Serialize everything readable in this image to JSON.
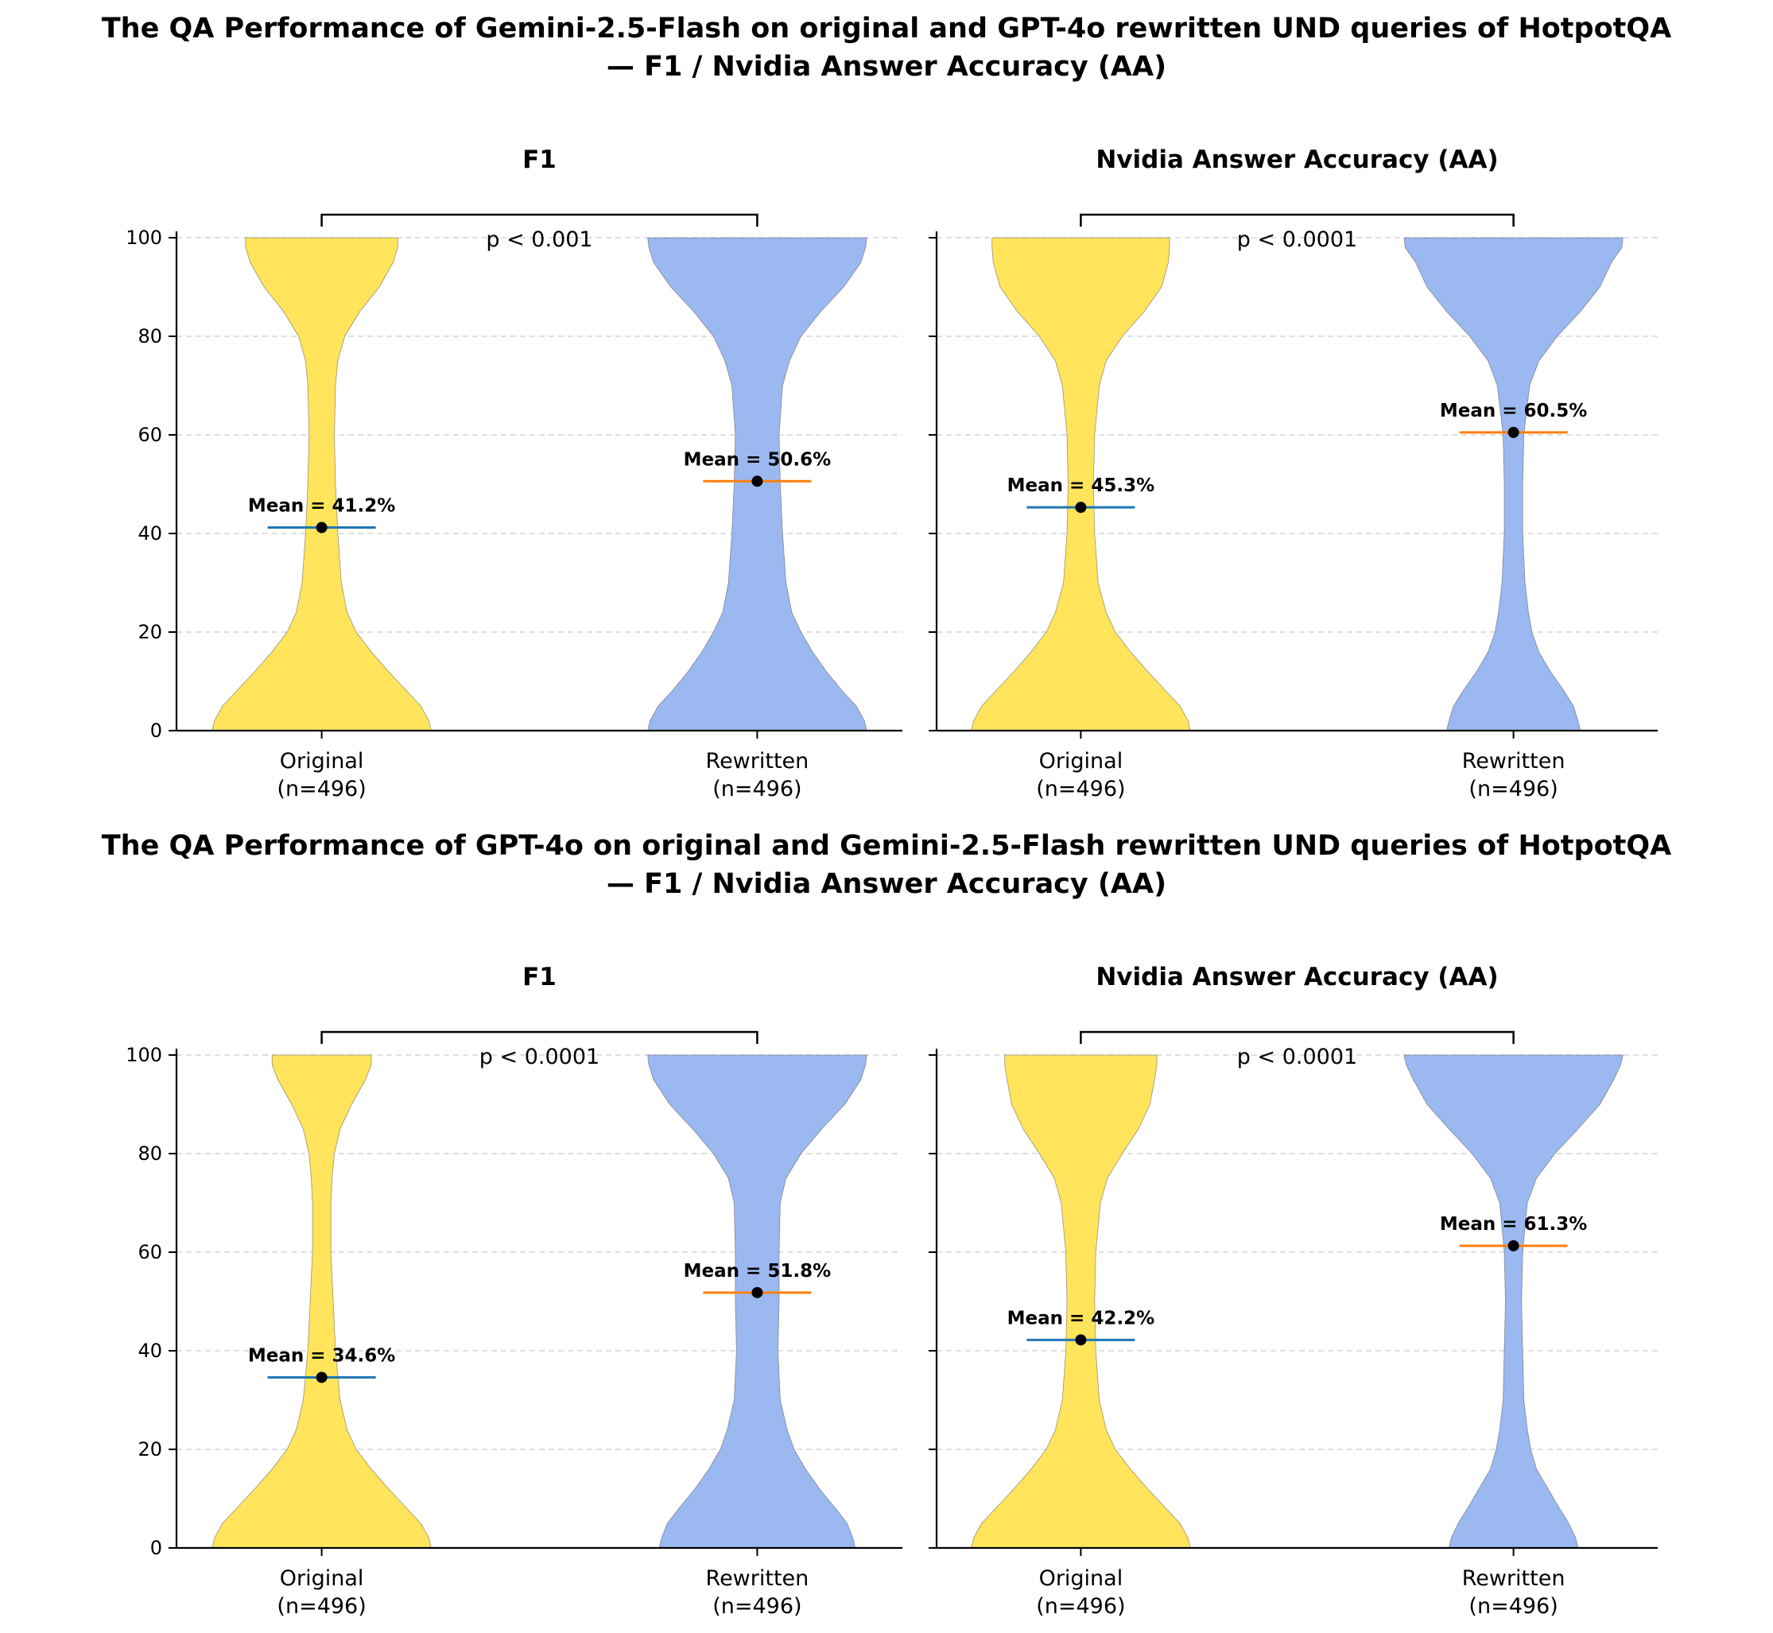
{
  "colors": {
    "original_fill": "#FFE45C",
    "rewritten_fill": "#9BB9F0",
    "original_mean_line": "#1F77B4",
    "rewritten_mean_line": "#FF7F0E",
    "grid": "#cccccc",
    "axis": "#000000"
  },
  "figures": [
    {
      "title_line1": "The QA Performance of Gemini-2.5-Flash on original and GPT-4o rewritten UND queries of HotpotQA",
      "title_line2": "— F1 / Nvidia Answer Accuracy (AA)"
    },
    {
      "title_line1": "The QA Performance of GPT-4o on original and Gemini-2.5-Flash rewritten UND queries of HotpotQA",
      "title_line2": "— F1 / Nvidia Answer Accuracy (AA)"
    }
  ],
  "chart_data": [
    {
      "type": "violin",
      "figure": 0,
      "title": "F1",
      "categories": [
        "Original",
        "Rewritten"
      ],
      "counts": [
        "(n=496)",
        "(n=496)"
      ],
      "ylim": [
        0,
        100
      ],
      "yticks": [
        0,
        20,
        40,
        60,
        80,
        100
      ],
      "grid": true,
      "p_value": "p < 0.001",
      "series": [
        {
          "name": "Original",
          "mean": 41.2,
          "mean_label": "Mean = 41.2%",
          "density_y": [
            0,
            2,
            5,
            8,
            12,
            16,
            20,
            24,
            30,
            40,
            50,
            60,
            70,
            75,
            80,
            85,
            90,
            95,
            98,
            100
          ],
          "halfwidth": [
            0.95,
            0.93,
            0.86,
            0.74,
            0.58,
            0.43,
            0.3,
            0.22,
            0.17,
            0.14,
            0.12,
            0.11,
            0.12,
            0.14,
            0.2,
            0.33,
            0.5,
            0.62,
            0.66,
            0.66
          ]
        },
        {
          "name": "Rewritten",
          "mean": 50.6,
          "mean_label": "Mean = 50.6%",
          "density_y": [
            0,
            2,
            5,
            8,
            12,
            16,
            20,
            24,
            30,
            40,
            50,
            60,
            70,
            75,
            80,
            85,
            90,
            95,
            98,
            100
          ],
          "halfwidth": [
            0.95,
            0.93,
            0.86,
            0.74,
            0.6,
            0.48,
            0.38,
            0.3,
            0.25,
            0.22,
            0.2,
            0.19,
            0.22,
            0.28,
            0.38,
            0.55,
            0.75,
            0.9,
            0.94,
            0.95
          ]
        }
      ]
    },
    {
      "type": "violin",
      "figure": 0,
      "title": "Nvidia Answer Accuracy (AA)",
      "categories": [
        "Original",
        "Rewritten"
      ],
      "counts": [
        "(n=496)",
        "(n=496)"
      ],
      "ylim": [
        0,
        100
      ],
      "yticks": [
        0,
        20,
        40,
        60,
        80,
        100
      ],
      "grid": true,
      "p_value": "p < 0.0001",
      "series": [
        {
          "name": "Original",
          "mean": 45.3,
          "mean_label": "Mean = 45.3%",
          "density_y": [
            0,
            2,
            5,
            8,
            12,
            16,
            20,
            24,
            30,
            40,
            50,
            60,
            70,
            75,
            80,
            85,
            90,
            95,
            98,
            100
          ],
          "halfwidth": [
            0.95,
            0.93,
            0.86,
            0.74,
            0.58,
            0.43,
            0.3,
            0.22,
            0.15,
            0.12,
            0.11,
            0.12,
            0.16,
            0.22,
            0.36,
            0.55,
            0.7,
            0.76,
            0.77,
            0.77
          ]
        },
        {
          "name": "Rewritten",
          "mean": 60.5,
          "mean_label": "Mean = 60.5%",
          "density_y": [
            0,
            2,
            5,
            8,
            12,
            16,
            20,
            24,
            30,
            40,
            50,
            60,
            70,
            75,
            80,
            85,
            90,
            95,
            98,
            100
          ],
          "halfwidth": [
            0.58,
            0.56,
            0.52,
            0.44,
            0.32,
            0.22,
            0.16,
            0.13,
            0.1,
            0.08,
            0.08,
            0.09,
            0.14,
            0.22,
            0.38,
            0.58,
            0.75,
            0.85,
            0.94,
            0.95
          ]
        }
      ]
    },
    {
      "type": "violin",
      "figure": 1,
      "title": "F1",
      "categories": [
        "Original",
        "Rewritten"
      ],
      "counts": [
        "(n=496)",
        "(n=496)"
      ],
      "ylim": [
        0,
        100
      ],
      "yticks": [
        0,
        20,
        40,
        60,
        80,
        100
      ],
      "grid": true,
      "p_value": "p < 0.0001",
      "series": [
        {
          "name": "Original",
          "mean": 34.6,
          "mean_label": "Mean = 34.6%",
          "density_y": [
            0,
            2,
            5,
            8,
            12,
            16,
            20,
            24,
            30,
            40,
            50,
            60,
            70,
            75,
            80,
            85,
            90,
            95,
            98,
            100
          ],
          "halfwidth": [
            0.95,
            0.93,
            0.86,
            0.74,
            0.58,
            0.43,
            0.3,
            0.22,
            0.16,
            0.12,
            0.1,
            0.08,
            0.08,
            0.09,
            0.11,
            0.16,
            0.26,
            0.38,
            0.43,
            0.43
          ]
        },
        {
          "name": "Rewritten",
          "mean": 51.8,
          "mean_label": "Mean = 51.8%",
          "density_y": [
            0,
            2,
            5,
            8,
            12,
            16,
            20,
            24,
            30,
            40,
            50,
            60,
            70,
            75,
            80,
            85,
            90,
            95,
            98,
            100
          ],
          "halfwidth": [
            0.85,
            0.83,
            0.78,
            0.68,
            0.54,
            0.42,
            0.32,
            0.26,
            0.2,
            0.18,
            0.19,
            0.19,
            0.2,
            0.25,
            0.38,
            0.56,
            0.76,
            0.9,
            0.94,
            0.95
          ]
        }
      ]
    },
    {
      "type": "violin",
      "figure": 1,
      "title": "Nvidia Answer Accuracy (AA)",
      "categories": [
        "Original",
        "Rewritten"
      ],
      "counts": [
        "(n=496)",
        "(n=496)"
      ],
      "ylim": [
        0,
        100
      ],
      "yticks": [
        0,
        20,
        40,
        60,
        80,
        100
      ],
      "grid": true,
      "p_value": "p < 0.0001",
      "series": [
        {
          "name": "Original",
          "mean": 42.2,
          "mean_label": "Mean = 42.2%",
          "density_y": [
            0,
            2,
            5,
            8,
            12,
            16,
            20,
            24,
            30,
            40,
            50,
            60,
            70,
            75,
            80,
            85,
            90,
            95,
            98,
            100
          ],
          "halfwidth": [
            0.95,
            0.93,
            0.86,
            0.74,
            0.58,
            0.43,
            0.3,
            0.22,
            0.16,
            0.13,
            0.12,
            0.13,
            0.17,
            0.23,
            0.36,
            0.5,
            0.6,
            0.64,
            0.66,
            0.66
          ]
        },
        {
          "name": "Rewritten",
          "mean": 61.3,
          "mean_label": "Mean = 61.3%",
          "density_y": [
            0,
            2,
            5,
            8,
            12,
            16,
            20,
            24,
            30,
            40,
            50,
            60,
            70,
            75,
            80,
            85,
            90,
            95,
            98,
            100
          ],
          "halfwidth": [
            0.56,
            0.54,
            0.48,
            0.4,
            0.3,
            0.2,
            0.15,
            0.12,
            0.09,
            0.08,
            0.07,
            0.08,
            0.12,
            0.2,
            0.36,
            0.56,
            0.75,
            0.87,
            0.93,
            0.95
          ]
        }
      ]
    }
  ]
}
